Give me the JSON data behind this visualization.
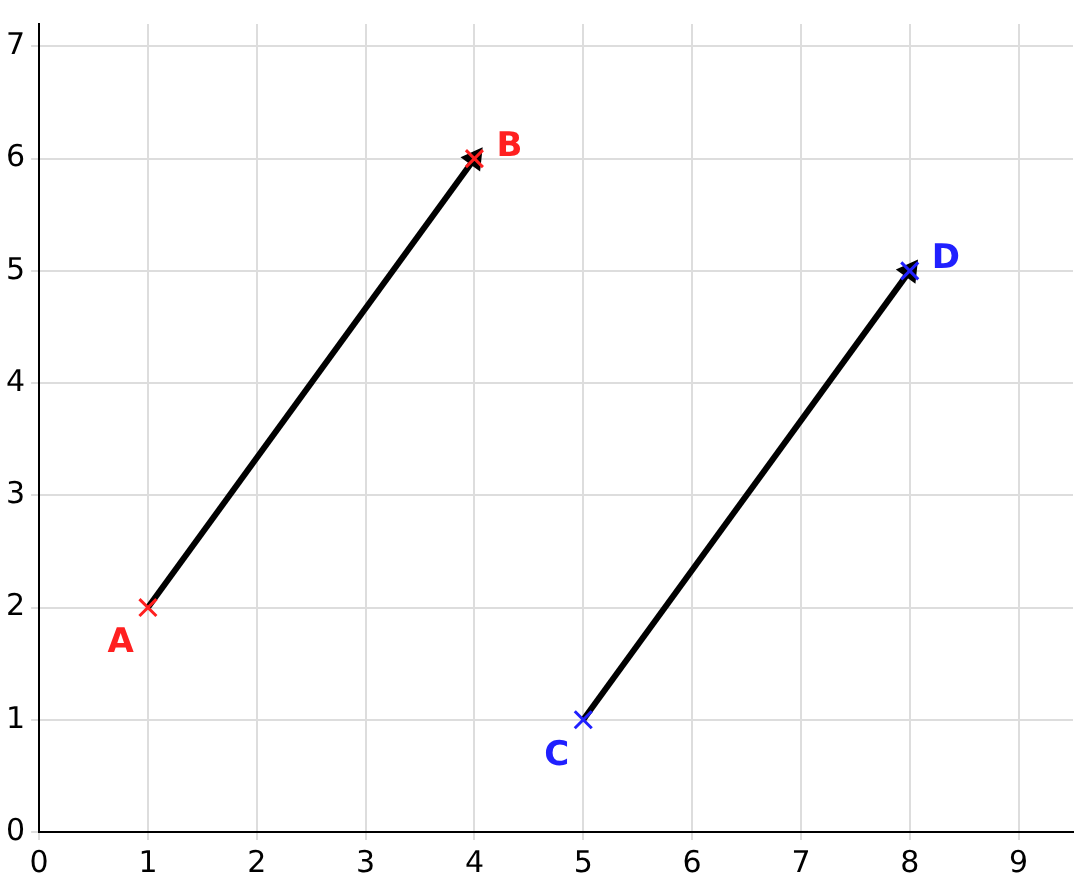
{
  "chart_data": {
    "type": "scatter",
    "series": [
      {
        "type": "line",
        "color": "#000000",
        "x": [
          1,
          4
        ],
        "values": [
          2,
          6
        ],
        "marker": "triangle"
      },
      {
        "type": "line",
        "color": "#000000",
        "x": [
          5,
          8
        ],
        "values": [
          1,
          5
        ],
        "marker": "triangle"
      },
      {
        "color": "#ff2020",
        "x": [
          1,
          4
        ],
        "values": [
          2,
          6
        ],
        "marker": "cross"
      },
      {
        "color": "#2020ff",
        "x": [
          5,
          8
        ],
        "values": [
          1,
          5
        ],
        "marker": "cross"
      }
    ],
    "annotations": [
      {
        "text": "A",
        "x": 1,
        "y": 2
      },
      {
        "text": "B",
        "x": 4,
        "y": 6
      },
      {
        "text": "C",
        "x": 5,
        "y": 1
      },
      {
        "text": "D",
        "x": 8,
        "y": 5
      }
    ],
    "xlim": [
      0,
      9.5
    ],
    "xticks": [
      0,
      1,
      2,
      3,
      4,
      5,
      6,
      7,
      8,
      9
    ],
    "ylim": [
      0,
      7.2
    ],
    "yticks": [
      0,
      1,
      2,
      3,
      4,
      5,
      6,
      7
    ],
    "grid": true,
    "legend": false
  }
}
